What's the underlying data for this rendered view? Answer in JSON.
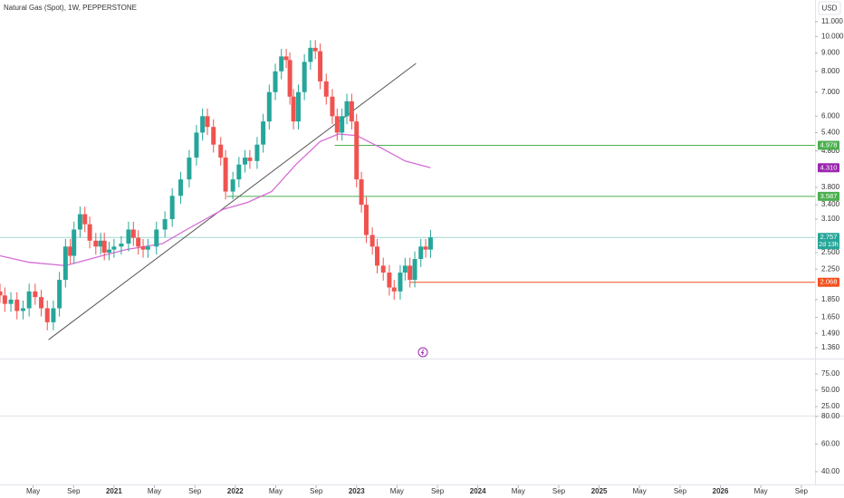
{
  "chart_data": {
    "type": "candlestick",
    "title": "Natural Gas (Spot), 1W, PEPPERSTONE",
    "currency": "USD",
    "log_scale": true,
    "up_color": "#26a69a",
    "down_color": "#ef5350",
    "x": [
      2020.06,
      2020.1,
      2020.15,
      2020.2,
      2020.25,
      2020.3,
      2020.35,
      2020.4,
      2020.45,
      2020.5,
      2020.55,
      2020.6,
      2020.64,
      2020.67,
      2020.72,
      2020.76,
      2020.8,
      2020.85,
      2020.89,
      2020.92,
      2020.96,
      2021.0,
      2021.06,
      2021.12,
      2021.16,
      2021.2,
      2021.24,
      2021.28,
      2021.35,
      2021.42,
      2021.48,
      2021.55,
      2021.62,
      2021.68,
      2021.73,
      2021.77,
      2021.82,
      2021.88,
      2021.92,
      2021.98,
      2022.03,
      2022.08,
      2022.12,
      2022.18,
      2022.23,
      2022.28,
      2022.33,
      2022.38,
      2022.42,
      2022.45,
      2022.48,
      2022.52,
      2022.57,
      2022.62,
      2022.66,
      2022.7,
      2022.75,
      2022.8,
      2022.84,
      2022.88,
      2022.92,
      2022.96,
      2023.0,
      2023.04,
      2023.08,
      2023.13,
      2023.17,
      2023.22,
      2023.27,
      2023.31,
      2023.36,
      2023.4,
      2023.44,
      2023.48,
      2023.53,
      2023.57,
      2023.61
    ],
    "open": [
      1.95,
      1.9,
      1.8,
      1.85,
      1.72,
      1.75,
      1.95,
      1.88,
      1.75,
      1.6,
      1.75,
      2.1,
      2.6,
      2.45,
      2.9,
      3.2,
      3.0,
      2.7,
      2.6,
      2.7,
      2.5,
      2.55,
      2.6,
      2.65,
      2.9,
      2.75,
      2.6,
      2.55,
      2.6,
      2.9,
      3.1,
      3.6,
      4.0,
      4.6,
      5.4,
      6.0,
      5.6,
      5.0,
      4.6,
      3.7,
      4.0,
      4.4,
      4.6,
      4.5,
      5.0,
      5.8,
      7.0,
      8.0,
      8.8,
      8.6,
      6.8,
      5.8,
      7.0,
      8.5,
      9.3,
      9.1,
      7.5,
      6.8,
      6.0,
      5.4,
      6.0,
      6.6,
      5.8,
      4.0,
      3.4,
      2.8,
      2.6,
      2.3,
      2.2,
      2.0,
      1.95,
      2.2,
      2.3,
      2.1,
      2.4,
      2.6,
      2.55
    ],
    "high": [
      2.05,
      2.0,
      1.94,
      1.94,
      1.84,
      2.05,
      2.05,
      1.97,
      1.84,
      1.84,
      2.21,
      2.73,
      2.73,
      3.05,
      3.36,
      3.36,
      3.15,
      2.84,
      2.84,
      2.84,
      2.68,
      2.73,
      2.78,
      3.05,
      3.05,
      2.89,
      2.73,
      2.73,
      3.05,
      3.26,
      3.78,
      4.2,
      4.83,
      5.67,
      6.3,
      6.3,
      5.88,
      5.25,
      4.83,
      4.2,
      4.62,
      4.83,
      4.83,
      5.25,
      6.09,
      7.35,
      8.4,
      9.24,
      9.24,
      9.03,
      7.14,
      7.35,
      8.93,
      9.77,
      9.77,
      9.56,
      7.88,
      7.14,
      6.3,
      6.3,
      6.93,
      6.93,
      6.09,
      4.2,
      3.57,
      2.94,
      2.73,
      2.42,
      2.31,
      2.1,
      2.31,
      2.42,
      2.42,
      2.52,
      2.73,
      2.73,
      2.89
    ],
    "low": [
      1.81,
      1.71,
      1.71,
      1.63,
      1.63,
      1.66,
      1.79,
      1.66,
      1.52,
      1.52,
      1.66,
      2.0,
      2.33,
      2.33,
      2.76,
      2.85,
      2.57,
      2.47,
      2.47,
      2.38,
      2.38,
      2.42,
      2.47,
      2.52,
      2.61,
      2.47,
      2.42,
      2.42,
      2.47,
      2.76,
      2.95,
      3.42,
      3.8,
      4.37,
      5.13,
      5.32,
      4.75,
      4.37,
      3.52,
      3.52,
      3.8,
      4.18,
      4.28,
      4.28,
      4.75,
      5.51,
      6.65,
      7.6,
      8.17,
      6.46,
      5.51,
      5.51,
      6.65,
      8.08,
      8.65,
      7.13,
      6.46,
      5.7,
      5.13,
      5.13,
      5.7,
      5.51,
      3.8,
      3.23,
      2.66,
      2.47,
      2.19,
      2.09,
      1.9,
      1.85,
      1.85,
      2.09,
      2.0,
      2.0,
      2.28,
      2.42,
      2.42
    ],
    "close": [
      1.9,
      1.8,
      1.85,
      1.72,
      1.75,
      1.95,
      1.88,
      1.75,
      1.6,
      1.75,
      2.1,
      2.6,
      2.45,
      2.9,
      3.2,
      3.0,
      2.7,
      2.6,
      2.7,
      2.5,
      2.55,
      2.6,
      2.65,
      2.9,
      2.75,
      2.6,
      2.55,
      2.6,
      2.9,
      3.1,
      3.6,
      4.0,
      4.6,
      5.4,
      6.0,
      5.6,
      5.0,
      4.6,
      3.7,
      4.0,
      4.4,
      4.6,
      4.5,
      5.0,
      5.8,
      7.0,
      8.0,
      8.8,
      8.6,
      6.8,
      5.8,
      7.0,
      8.5,
      9.3,
      9.1,
      7.5,
      6.8,
      6.0,
      5.4,
      6.0,
      6.6,
      5.8,
      4.0,
      3.4,
      2.8,
      2.6,
      2.3,
      2.2,
      2.0,
      1.95,
      2.2,
      2.3,
      2.1,
      2.4,
      2.6,
      2.55,
      2.757
    ],
    "moving_average": {
      "color": "#d66ad6",
      "x": [
        2020.06,
        2020.3,
        2020.6,
        2020.9,
        2021.1,
        2021.4,
        2021.6,
        2021.9,
        2022.1,
        2022.3,
        2022.5,
        2022.7,
        2022.85,
        2023.0,
        2023.2,
        2023.4,
        2023.61
      ],
      "values": [
        2.45,
        2.35,
        2.3,
        2.45,
        2.55,
        2.65,
        2.9,
        3.3,
        3.45,
        3.7,
        4.4,
        5.1,
        5.35,
        5.3,
        4.9,
        4.5,
        4.31
      ],
      "last_value_label": "4.310",
      "label_color": "#9c27b0"
    },
    "trend_line": {
      "color": "#555555",
      "x": [
        2020.46,
        2023.49
      ],
      "values": [
        1.43,
        8.42
      ]
    },
    "levels": [
      {
        "value": 4.978,
        "color": "#4caf50",
        "start": 2022.82
      },
      {
        "value": 3.587,
        "color": "#4caf50",
        "start": 2021.93
      },
      {
        "value": 2.757,
        "color": "#26a69a",
        "line_color": "#9fd8d2"
      },
      {
        "value": 2.068,
        "color": "#f4511e",
        "start": 2023.44
      }
    ],
    "countdown": "2d 13h",
    "xlim": [
      2020.06,
      2026.78
    ],
    "xticks": [
      {
        "value": 2020.333,
        "label": "May"
      },
      {
        "value": 2020.667,
        "label": "Sep"
      },
      2021,
      {
        "value": 2021.333,
        "label": "May"
      },
      {
        "value": 2021.667,
        "label": "Sep"
      },
      2022,
      {
        "value": 2022.333,
        "label": "May"
      },
      {
        "value": 2022.667,
        "label": "Sep"
      },
      2023,
      {
        "value": 2023.333,
        "label": "May"
      },
      {
        "value": 2023.667,
        "label": "Sep"
      },
      2024,
      {
        "value": 2024.333,
        "label": "May"
      },
      {
        "value": 2024.667,
        "label": "Sep"
      },
      2025,
      {
        "value": 2025.333,
        "label": "May"
      },
      {
        "value": 2025.667,
        "label": "Sep"
      },
      2026,
      {
        "value": 2026.333,
        "label": "May"
      },
      {
        "value": 2026.667,
        "label": "Sep"
      }
    ],
    "ylim": [
      1.275,
      12.64
    ],
    "yticks": [
      {
        "value": 11,
        "label": "11.000"
      },
      {
        "value": 10,
        "label": "10.000"
      },
      {
        "value": 9,
        "label": "9.000"
      },
      {
        "value": 8,
        "label": "8.000"
      },
      {
        "value": 7,
        "label": "7.000"
      },
      {
        "value": 6,
        "label": "6.000"
      },
      {
        "value": 5.4,
        "label": "5.400"
      },
      {
        "value": 4.8,
        "label": "4.800"
      },
      {
        "value": 3.8,
        "label": "3.800"
      },
      {
        "value": 3.4,
        "label": "3.400"
      },
      {
        "value": 3.1,
        "label": "3.100"
      },
      {
        "value": 2.5,
        "label": "2.500"
      },
      {
        "value": 2.25,
        "label": "2.250"
      },
      {
        "value": 1.85,
        "label": "1.850"
      },
      {
        "value": 1.65,
        "label": "1.650"
      },
      {
        "value": 1.49,
        "label": "1.490"
      },
      {
        "value": 1.36,
        "label": "1.360"
      }
    ],
    "panels": [
      {
        "ylim": [
          11.1,
          97.2
        ],
        "yticks": [
          {
            "value": 75,
            "label": "75.00"
          },
          {
            "value": 50,
            "label": "50.00"
          },
          {
            "value": 25,
            "label": "25.00"
          }
        ]
      },
      {
        "ylim": [
          30.8,
          80
        ],
        "yticks": [
          {
            "value": 80,
            "label": "80.00"
          },
          {
            "value": 60,
            "label": "60.00"
          },
          {
            "value": 40,
            "label": "40.00"
          }
        ]
      }
    ]
  }
}
